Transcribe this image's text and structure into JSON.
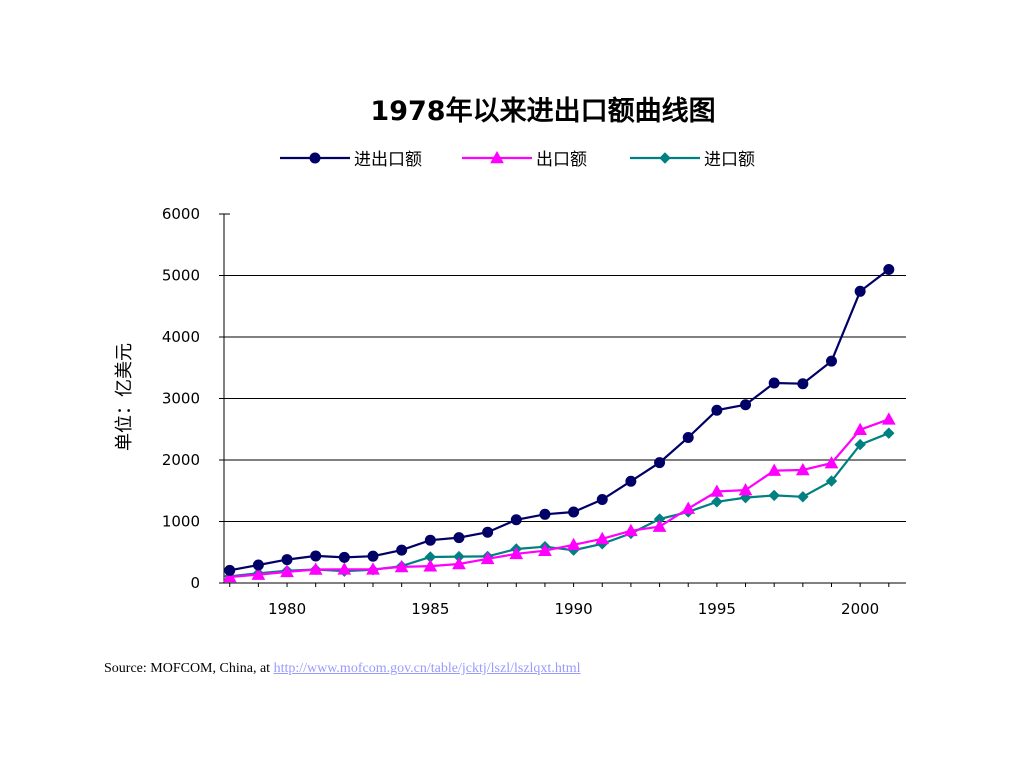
{
  "chart_data": {
    "type": "line",
    "title": "1978年以来进出口额曲线图",
    "ylabel": "单位：亿美元",
    "xlabel": "",
    "ylim": [
      0,
      6000
    ],
    "yticks": [
      0,
      1000,
      2000,
      3000,
      4000,
      5000,
      6000
    ],
    "xlim": [
      1977.8,
      2001.6
    ],
    "xticks": [
      1980,
      1985,
      1990,
      1995,
      2000
    ],
    "grid": "horizontal major lines",
    "legend_position": "top",
    "x": [
      1978,
      1979,
      1980,
      1981,
      1982,
      1983,
      1984,
      1985,
      1986,
      1987,
      1988,
      1989,
      1990,
      1991,
      1992,
      1993,
      1994,
      1995,
      1996,
      1997,
      1998,
      1999,
      2000,
      2001
    ],
    "series": [
      {
        "name": "进出口额",
        "color": "#000066",
        "marker": "circle",
        "values": [
          206,
          293,
          381,
          440,
          416,
          436,
          535,
          696,
          738,
          826,
          1028,
          1117,
          1154,
          1357,
          1655,
          1957,
          2366,
          2809,
          2899,
          3252,
          3240,
          3607,
          4743,
          5097
        ]
      },
      {
        "name": "出口额",
        "color": "#ff00ff",
        "marker": "triangle",
        "values": [
          98,
          137,
          181,
          220,
          223,
          222,
          261,
          274,
          309,
          394,
          475,
          525,
          621,
          719,
          849,
          917,
          1210,
          1488,
          1510,
          1828,
          1838,
          1949,
          2492,
          2661
        ]
      },
      {
        "name": "进口额",
        "color": "#008080",
        "marker": "diamond",
        "values": [
          109,
          157,
          200,
          220,
          193,
          214,
          274,
          423,
          429,
          432,
          553,
          591,
          534,
          638,
          806,
          1040,
          1156,
          1321,
          1388,
          1424,
          1402,
          1657,
          2251,
          2436
        ]
      }
    ]
  },
  "source": {
    "prefix": "Source: MOFCOM, China, at ",
    "link_text": "http://www.mofcom.gov.cn/table/jcktj/lszl/lszlqxt.html"
  }
}
